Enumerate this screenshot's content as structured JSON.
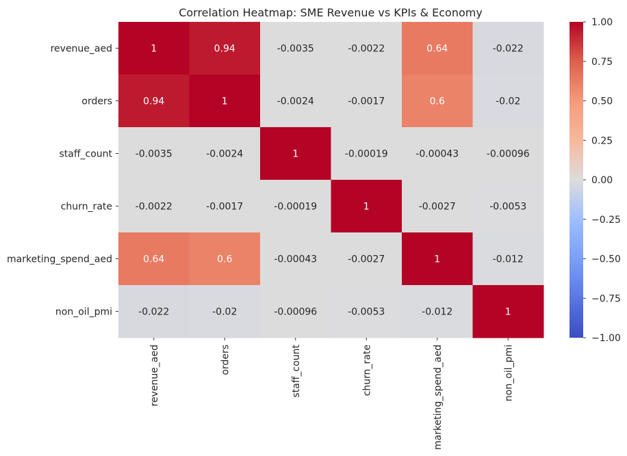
{
  "chart_data": {
    "type": "heatmap",
    "title": "Correlation Heatmap: SME Revenue vs KPIs & Economy",
    "rows": [
      "revenue_aed",
      "orders",
      "staff_count",
      "churn_rate",
      "marketing_spend_aed",
      "non_oil_pmi"
    ],
    "columns": [
      "revenue_aed",
      "orders",
      "staff_count",
      "churn_rate",
      "marketing_spend_aed",
      "non_oil_pmi"
    ],
    "values": [
      [
        1,
        0.94,
        -0.0035,
        -0.0022,
        0.64,
        -0.022
      ],
      [
        0.94,
        1,
        -0.0024,
        -0.0017,
        0.6,
        -0.02
      ],
      [
        -0.0035,
        -0.0024,
        1,
        -0.00019,
        -0.00043,
        -0.00096
      ],
      [
        -0.0022,
        -0.0017,
        -0.00019,
        1,
        -0.0027,
        -0.0053
      ],
      [
        0.64,
        0.6,
        -0.00043,
        -0.0027,
        1,
        -0.012
      ],
      [
        -0.022,
        -0.02,
        -0.00096,
        -0.0053,
        -0.012,
        1
      ]
    ],
    "value_labels": [
      [
        "1",
        "0.94",
        "-0.0035",
        "-0.0022",
        "0.64",
        "-0.022"
      ],
      [
        "0.94",
        "1",
        "-0.0024",
        "-0.0017",
        "0.6",
        "-0.02"
      ],
      [
        "-0.0035",
        "-0.0024",
        "1",
        "-0.00019",
        "-0.00043",
        "-0.00096"
      ],
      [
        "-0.0022",
        "-0.0017",
        "-0.00019",
        "1",
        "-0.0027",
        "-0.0053"
      ],
      [
        "0.64",
        "0.6",
        "-0.00043",
        "-0.0027",
        "1",
        "-0.012"
      ],
      [
        "-0.022",
        "-0.02",
        "-0.00096",
        "-0.0053",
        "-0.012",
        "1"
      ]
    ],
    "colormap": "coolwarm",
    "vmin": -1,
    "vmax": 1,
    "colorbar_ticks": [
      "1.00",
      "0.75",
      "0.50",
      "0.25",
      "0.00",
      "−0.25",
      "−0.50",
      "−0.75",
      "−1.00"
    ],
    "colorbar_tick_values": [
      1,
      0.75,
      0.5,
      0.25,
      0,
      -0.25,
      -0.5,
      -0.75,
      -1
    ]
  }
}
